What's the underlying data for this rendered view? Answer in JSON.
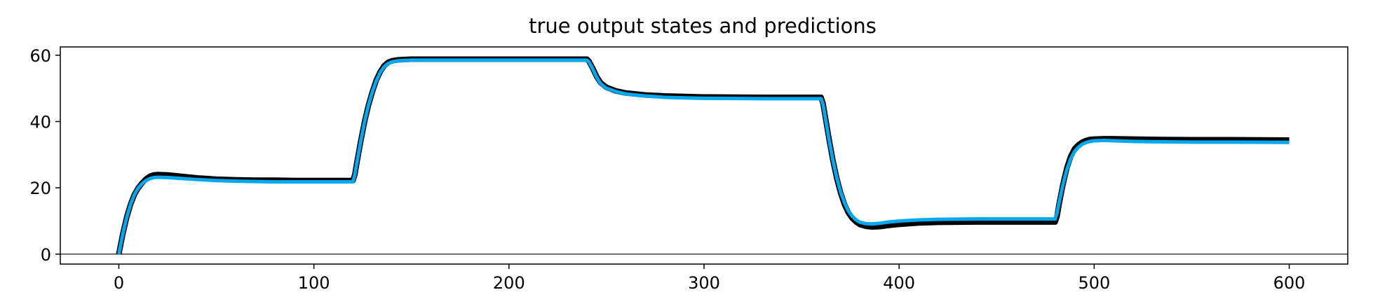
{
  "chart_data": {
    "type": "line",
    "title": "true output states and predictions",
    "xlabel": "",
    "ylabel": "",
    "xlim": [
      -30,
      630
    ],
    "ylim": [
      -3,
      62.5
    ],
    "xticks": [
      0,
      100,
      200,
      300,
      400,
      500,
      600
    ],
    "yticks": [
      0,
      20,
      40,
      60
    ],
    "grid": false,
    "zero_line": true,
    "series": [
      {
        "color": "#000000",
        "style": "true",
        "points": [
          [
            0,
            0
          ],
          [
            2,
            6
          ],
          [
            4,
            11
          ],
          [
            6,
            15
          ],
          [
            8,
            18
          ],
          [
            10,
            20
          ],
          [
            12,
            21.5
          ],
          [
            14,
            22.7
          ],
          [
            16,
            23.5
          ],
          [
            18,
            23.9
          ],
          [
            20,
            24
          ],
          [
            25,
            23.9
          ],
          [
            30,
            23.6
          ],
          [
            40,
            23
          ],
          [
            50,
            22.6
          ],
          [
            60,
            22.4
          ],
          [
            70,
            22.3
          ],
          [
            80,
            22.3
          ],
          [
            90,
            22.2
          ],
          [
            100,
            22.2
          ],
          [
            110,
            22.2
          ],
          [
            120,
            22.2
          ],
          [
            121,
            24
          ],
          [
            122,
            27.5
          ],
          [
            124,
            34
          ],
          [
            126,
            40
          ],
          [
            128,
            45
          ],
          [
            130,
            49
          ],
          [
            132,
            52.5
          ],
          [
            134,
            55
          ],
          [
            136,
            56.8
          ],
          [
            138,
            57.8
          ],
          [
            140,
            58.3
          ],
          [
            143,
            58.6
          ],
          [
            146,
            58.7
          ],
          [
            150,
            58.8
          ],
          [
            170,
            58.8
          ],
          [
            200,
            58.8
          ],
          [
            230,
            58.8
          ],
          [
            240,
            58.8
          ],
          [
            241,
            58.2
          ],
          [
            243,
            56
          ],
          [
            245,
            53.5
          ],
          [
            247,
            51.7
          ],
          [
            250,
            50.3
          ],
          [
            255,
            49.2
          ],
          [
            260,
            48.6
          ],
          [
            270,
            48
          ],
          [
            280,
            47.7
          ],
          [
            300,
            47.4
          ],
          [
            330,
            47.3
          ],
          [
            360,
            47.3
          ],
          [
            361,
            45.5
          ],
          [
            362,
            42
          ],
          [
            364,
            35
          ],
          [
            366,
            28.5
          ],
          [
            368,
            23
          ],
          [
            370,
            18.5
          ],
          [
            372,
            15
          ],
          [
            374,
            12.5
          ],
          [
            376,
            10.8
          ],
          [
            378,
            9.7
          ],
          [
            380,
            8.9
          ],
          [
            383,
            8.4
          ],
          [
            386,
            8.2
          ],
          [
            390,
            8.3
          ],
          [
            395,
            8.7
          ],
          [
            400,
            9
          ],
          [
            410,
            9.4
          ],
          [
            420,
            9.6
          ],
          [
            440,
            9.7
          ],
          [
            460,
            9.7
          ],
          [
            480,
            9.7
          ],
          [
            481,
            11.5
          ],
          [
            482,
            15
          ],
          [
            484,
            21
          ],
          [
            486,
            26
          ],
          [
            488,
            29.5
          ],
          [
            490,
            31.8
          ],
          [
            492,
            33
          ],
          [
            494,
            33.8
          ],
          [
            496,
            34.3
          ],
          [
            498,
            34.6
          ],
          [
            500,
            34.7
          ],
          [
            505,
            34.8
          ],
          [
            510,
            34.8
          ],
          [
            520,
            34.7
          ],
          [
            530,
            34.6
          ],
          [
            550,
            34.5
          ],
          [
            570,
            34.5
          ],
          [
            600,
            34.4
          ]
        ]
      },
      {
        "color": "#00a8f0",
        "style": "prediction",
        "points": [
          [
            0,
            0
          ],
          [
            2,
            6
          ],
          [
            4,
            11
          ],
          [
            6,
            15
          ],
          [
            8,
            18
          ],
          [
            10,
            20
          ],
          [
            12,
            21.3
          ],
          [
            14,
            22.2
          ],
          [
            16,
            22.8
          ],
          [
            18,
            23.1
          ],
          [
            20,
            23.2
          ],
          [
            25,
            23.1
          ],
          [
            30,
            22.9
          ],
          [
            40,
            22.5
          ],
          [
            50,
            22.2
          ],
          [
            60,
            22
          ],
          [
            70,
            21.9
          ],
          [
            80,
            21.8
          ],
          [
            100,
            21.8
          ],
          [
            120,
            21.8
          ],
          [
            121,
            24
          ],
          [
            122,
            27.5
          ],
          [
            124,
            34
          ],
          [
            126,
            40
          ],
          [
            128,
            45
          ],
          [
            130,
            49
          ],
          [
            132,
            52.3
          ],
          [
            134,
            54.8
          ],
          [
            136,
            56.5
          ],
          [
            138,
            57.5
          ],
          [
            140,
            58
          ],
          [
            143,
            58.3
          ],
          [
            146,
            58.4
          ],
          [
            150,
            58.5
          ],
          [
            200,
            58.5
          ],
          [
            240,
            58.5
          ],
          [
            241,
            58
          ],
          [
            243,
            55.8
          ],
          [
            245,
            53.3
          ],
          [
            247,
            51.4
          ],
          [
            250,
            50
          ],
          [
            255,
            49
          ],
          [
            260,
            48.3
          ],
          [
            270,
            47.7
          ],
          [
            280,
            47.3
          ],
          [
            300,
            47
          ],
          [
            330,
            46.9
          ],
          [
            360,
            46.9
          ],
          [
            361,
            45.2
          ],
          [
            362,
            41.8
          ],
          [
            364,
            34.8
          ],
          [
            366,
            28.5
          ],
          [
            368,
            23.2
          ],
          [
            370,
            18.8
          ],
          [
            372,
            15.5
          ],
          [
            374,
            13
          ],
          [
            376,
            11.4
          ],
          [
            378,
            10.3
          ],
          [
            380,
            9.6
          ],
          [
            383,
            9.2
          ],
          [
            386,
            9.1
          ],
          [
            390,
            9.3
          ],
          [
            395,
            9.7
          ],
          [
            400,
            10
          ],
          [
            410,
            10.3
          ],
          [
            420,
            10.5
          ],
          [
            440,
            10.6
          ],
          [
            480,
            10.6
          ],
          [
            481,
            12.5
          ],
          [
            482,
            15.5
          ],
          [
            484,
            21
          ],
          [
            486,
            25.5
          ],
          [
            488,
            28.8
          ],
          [
            490,
            31
          ],
          [
            492,
            32.3
          ],
          [
            494,
            33.2
          ],
          [
            496,
            33.7
          ],
          [
            498,
            34
          ],
          [
            500,
            34.2
          ],
          [
            505,
            34.3
          ],
          [
            510,
            34.2
          ],
          [
            520,
            34
          ],
          [
            530,
            33.9
          ],
          [
            550,
            33.8
          ],
          [
            570,
            33.8
          ],
          [
            600,
            33.7
          ]
        ]
      }
    ]
  }
}
